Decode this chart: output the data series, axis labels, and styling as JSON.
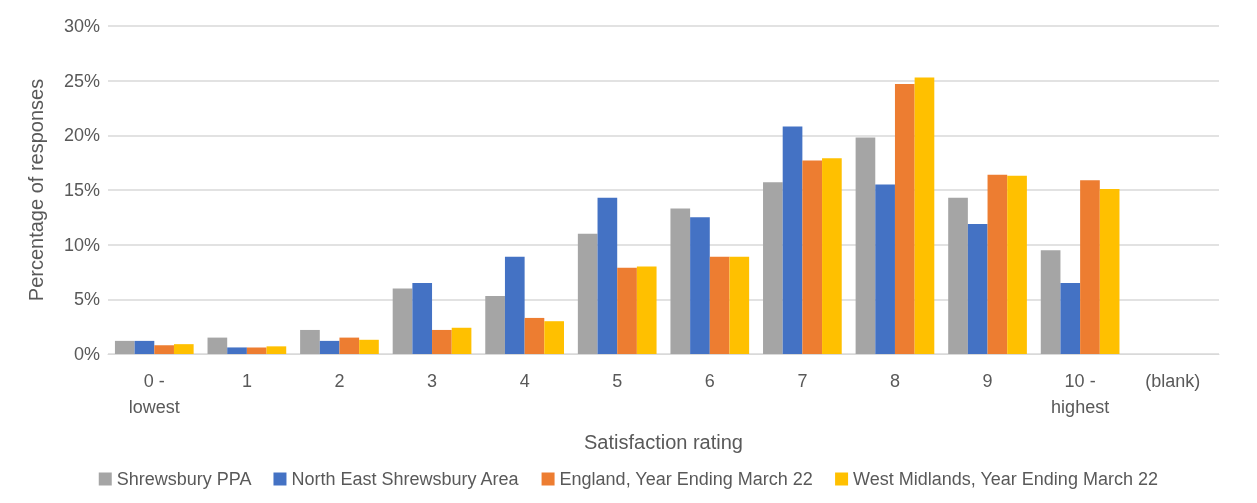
{
  "chart_data": {
    "type": "bar",
    "xlabel": "Satisfaction rating",
    "ylabel": "Percentage of responses",
    "categories": [
      "0 -\nlowest",
      "1",
      "2",
      "3",
      "4",
      "5",
      "6",
      "7",
      "8",
      "9",
      "10 -\nhighest",
      "(blank)"
    ],
    "series": [
      {
        "name": "Shrewsbury PPA",
        "color": "#a5a5a5",
        "values": [
          1.2,
          1.5,
          2.2,
          6.0,
          5.3,
          11.0,
          13.3,
          15.7,
          19.8,
          14.3,
          9.5,
          null
        ]
      },
      {
        "name": "North East Shrewsbury Area",
        "color": "#4472c4",
        "values": [
          1.2,
          0.6,
          1.2,
          6.5,
          8.9,
          14.3,
          12.5,
          20.8,
          15.5,
          11.9,
          6.5,
          null
        ]
      },
      {
        "name": "England, Year Ending March 22",
        "color": "#ed7d31",
        "values": [
          0.8,
          0.6,
          1.5,
          2.2,
          3.3,
          7.9,
          8.9,
          17.7,
          24.7,
          16.4,
          15.9,
          null
        ]
      },
      {
        "name": "West Midlands, Year Ending March 22",
        "color": "#ffc000",
        "values": [
          0.9,
          0.7,
          1.3,
          2.4,
          3.0,
          8.0,
          8.9,
          17.9,
          25.3,
          16.3,
          15.1,
          null
        ]
      }
    ],
    "ylim": [
      0,
      30
    ],
    "yticks": [
      {
        "value": 0,
        "label": "0%"
      },
      {
        "value": 5,
        "label": "5%"
      },
      {
        "value": 10,
        "label": "10%"
      },
      {
        "value": 15,
        "label": "15%"
      },
      {
        "value": 20,
        "label": "20%"
      },
      {
        "value": 25,
        "label": "25%"
      },
      {
        "value": 30,
        "label": "30%"
      }
    ],
    "grid": "y",
    "legend": "bottom"
  }
}
